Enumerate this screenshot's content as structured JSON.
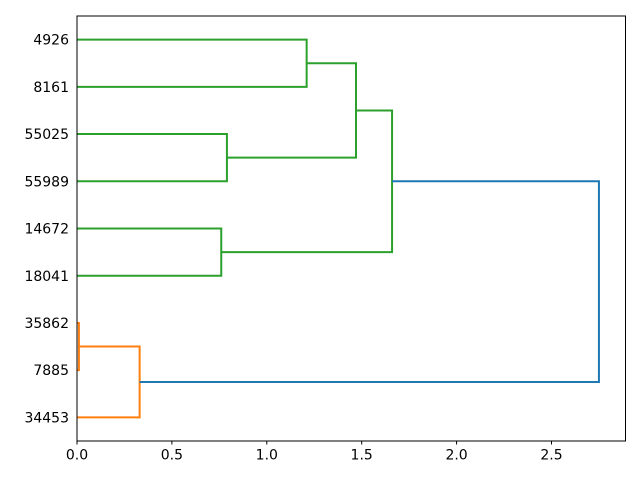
{
  "figure": {
    "kind": "matplotlib-dendrogram"
  },
  "chart_data": {
    "type": "dendrogram",
    "orientation": "right",
    "title": "",
    "xlabel": "",
    "ylabel": "",
    "grid": false,
    "legend": null,
    "leaf_labels": [
      "4926",
      "8161",
      "55025",
      "55989",
      "14672",
      "18041",
      "35862",
      "7885",
      "34453"
    ],
    "x_ticks": [
      {
        "value": 0.0,
        "label": "0.0"
      },
      {
        "value": 0.5,
        "label": "0.5"
      },
      {
        "value": 1.0,
        "label": "1.0"
      },
      {
        "value": 1.5,
        "label": "1.5"
      },
      {
        "value": 2.0,
        "label": "2.0"
      },
      {
        "value": 2.5,
        "label": "2.5"
      }
    ],
    "xlim": [
      0,
      2.89
    ],
    "links": [
      {
        "children": [
          "leaf:35862",
          "leaf:7885"
        ],
        "distance": 0.01,
        "color_key": "orange"
      },
      {
        "children": [
          "link:0",
          "leaf:34453"
        ],
        "distance": 0.33,
        "color_key": "orange"
      },
      {
        "children": [
          "leaf:14672",
          "leaf:18041"
        ],
        "distance": 0.76,
        "color_key": "green"
      },
      {
        "children": [
          "leaf:55025",
          "leaf:55989"
        ],
        "distance": 0.79,
        "color_key": "green"
      },
      {
        "children": [
          "leaf:4926",
          "leaf:8161"
        ],
        "distance": 1.21,
        "color_key": "green"
      },
      {
        "children": [
          "link:4",
          "link:3"
        ],
        "distance": 1.47,
        "color_key": "green"
      },
      {
        "children": [
          "link:5",
          "link:2"
        ],
        "distance": 1.66,
        "color_key": "green"
      },
      {
        "children": [
          "link:6",
          "link:1"
        ],
        "distance": 2.75,
        "color_key": "blue"
      }
    ],
    "colors": {
      "green": "#2ca02c",
      "orange": "#ff7f0e",
      "blue": "#1f77b4",
      "axis": "#000000",
      "background": "#ffffff"
    }
  }
}
